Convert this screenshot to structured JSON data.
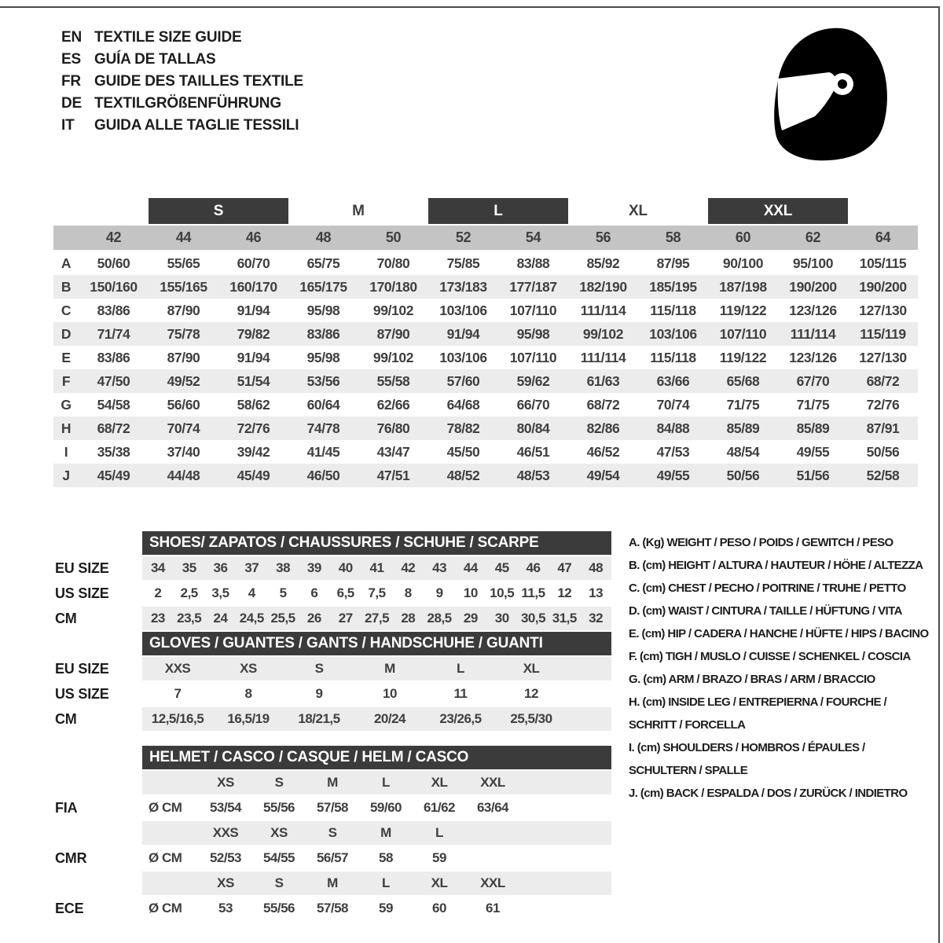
{
  "colors": {
    "dark_bar": "#3b3b3b",
    "header_gray": "#c4c4c4",
    "zebra_gray": "#ececec",
    "text": "#3f3f3f"
  },
  "languages": [
    {
      "code": "EN",
      "label": "TEXTILE SIZE GUIDE"
    },
    {
      "code": "ES",
      "label": "GUÍA DE TALLAS"
    },
    {
      "code": "FR",
      "label": "GUIDE DES TAILLES TEXTILE"
    },
    {
      "code": "DE",
      "label": "TEXTILGRÖßENFÜHRUNG"
    },
    {
      "code": "IT",
      "label": "GUIDA ALLE TAGLIE TESSILI"
    }
  ],
  "helmet_icon": "racing-helmet-icon",
  "main_table": {
    "size_groups": [
      {
        "label": "S",
        "bar": true,
        "start": 1,
        "span": 2
      },
      {
        "label": "M",
        "bar": false,
        "start": 3,
        "span": 2
      },
      {
        "label": "L",
        "bar": true,
        "start": 5,
        "span": 2
      },
      {
        "label": "XL",
        "bar": false,
        "start": 7,
        "span": 2
      },
      {
        "label": "XXL",
        "bar": true,
        "start": 9,
        "span": 2
      }
    ],
    "columns": [
      "42",
      "44",
      "46",
      "48",
      "50",
      "52",
      "54",
      "56",
      "58",
      "60",
      "62",
      "64"
    ],
    "rows": [
      {
        "id": "A",
        "values": [
          "50/60",
          "55/65",
          "60/70",
          "65/75",
          "70/80",
          "75/85",
          "83/88",
          "85/92",
          "87/95",
          "90/100",
          "95/100",
          "105/115"
        ]
      },
      {
        "id": "B",
        "values": [
          "150/160",
          "155/165",
          "160/170",
          "165/175",
          "170/180",
          "173/183",
          "177/187",
          "182/190",
          "185/195",
          "187/198",
          "190/200",
          "190/200"
        ]
      },
      {
        "id": "C",
        "values": [
          "83/86",
          "87/90",
          "91/94",
          "95/98",
          "99/102",
          "103/106",
          "107/110",
          "111/114",
          "115/118",
          "119/122",
          "123/126",
          "127/130"
        ]
      },
      {
        "id": "D",
        "values": [
          "71/74",
          "75/78",
          "79/82",
          "83/86",
          "87/90",
          "91/94",
          "95/98",
          "99/102",
          "103/106",
          "107/110",
          "111/114",
          "115/119"
        ]
      },
      {
        "id": "E",
        "values": [
          "83/86",
          "87/90",
          "91/94",
          "95/98",
          "99/102",
          "103/106",
          "107/110",
          "111/114",
          "115/118",
          "119/122",
          "123/126",
          "127/130"
        ]
      },
      {
        "id": "F",
        "values": [
          "47/50",
          "49/52",
          "51/54",
          "53/56",
          "55/58",
          "57/60",
          "59/62",
          "61/63",
          "63/66",
          "65/68",
          "67/70",
          "68/72"
        ]
      },
      {
        "id": "G",
        "values": [
          "54/58",
          "56/60",
          "58/62",
          "60/64",
          "62/66",
          "64/68",
          "66/70",
          "68/72",
          "70/74",
          "71/75",
          "71/75",
          "72/76"
        ]
      },
      {
        "id": "H",
        "values": [
          "68/72",
          "70/74",
          "72/76",
          "74/78",
          "76/80",
          "78/82",
          "80/84",
          "82/86",
          "84/88",
          "85/89",
          "85/89",
          "87/91"
        ]
      },
      {
        "id": "I",
        "values": [
          "35/38",
          "37/40",
          "39/42",
          "41/45",
          "43/47",
          "45/50",
          "46/51",
          "46/52",
          "47/53",
          "48/54",
          "49/55",
          "50/56"
        ]
      },
      {
        "id": "J",
        "values": [
          "45/49",
          "44/48",
          "45/49",
          "46/50",
          "47/51",
          "48/52",
          "48/53",
          "49/54",
          "49/55",
          "50/56",
          "51/56",
          "52/58"
        ]
      }
    ]
  },
  "shoes_table": {
    "title": "SHOES/ ZAPATOS / CHAUSSURES / SCHUHE / SCARPE",
    "rows": [
      {
        "label": "EU SIZE",
        "values": [
          "34",
          "35",
          "36",
          "37",
          "38",
          "39",
          "40",
          "41",
          "42",
          "43",
          "44",
          "45",
          "46",
          "47",
          "48"
        ]
      },
      {
        "label": "US SIZE",
        "values": [
          "2",
          "2,5",
          "3,5",
          "4",
          "5",
          "6",
          "6,5",
          "7,5",
          "8",
          "9",
          "10",
          "10,5",
          "11,5",
          "12",
          "13"
        ]
      },
      {
        "label": "CM",
        "values": [
          "23",
          "23,5",
          "24",
          "24,5",
          "25,5",
          "26",
          "27",
          "27,5",
          "28",
          "28,5",
          "29",
          "30",
          "30,5",
          "31,5",
          "32"
        ]
      }
    ]
  },
  "gloves_table": {
    "title": "GLOVES / GUANTES / GANTS / HANDSCHUHE / GUANTI",
    "rows": [
      {
        "label": "EU SIZE",
        "values": [
          "XXS",
          "XS",
          "S",
          "M",
          "L",
          "XL"
        ]
      },
      {
        "label": "US SIZE",
        "values": [
          "7",
          "8",
          "9",
          "10",
          "11",
          "12"
        ]
      },
      {
        "label": "CM",
        "values": [
          "12,5/16,5",
          "16,5/19",
          "18/21,5",
          "20/24",
          "23/26,5",
          "25,5/30"
        ]
      }
    ]
  },
  "helmet_table": {
    "title": "HELMET / CASCO / CASQUE / HELM / CASCO",
    "unit": "Ø CM",
    "sections": [
      {
        "label": "FIA",
        "sizes": [
          "XS",
          "S",
          "M",
          "L",
          "XL",
          "XXL"
        ],
        "values": [
          "53/54",
          "55/56",
          "57/58",
          "59/60",
          "61/62",
          "63/64"
        ]
      },
      {
        "label": "CMR",
        "sizes": [
          "XXS",
          "XS",
          "S",
          "M",
          "L"
        ],
        "values": [
          "52/53",
          "54/55",
          "56/57",
          "58",
          "59"
        ]
      },
      {
        "label": "ECE",
        "sizes": [
          "XS",
          "S",
          "M",
          "L",
          "XL",
          "XXL"
        ],
        "values": [
          "53",
          "55/56",
          "57/58",
          "59",
          "60",
          "61"
        ]
      }
    ]
  },
  "legend": {
    "items": [
      {
        "id": "A",
        "lines": [
          "A. (Kg) WEIGHT / PESO / POIDS / GEWITCH / PESO"
        ]
      },
      {
        "id": "B",
        "lines": [
          "B. (cm) HEIGHT / ALTURA / HAUTEUR / HÖHE / ALTEZZA"
        ]
      },
      {
        "id": "C",
        "lines": [
          "C. (cm) CHEST / PECHO / POITRINE / TRUHE / PETTO"
        ]
      },
      {
        "id": "D",
        "lines": [
          "D. (cm) WAIST / CINTURA / TAILLE / HÜFTUNG / VITA"
        ]
      },
      {
        "id": "E",
        "lines": [
          "E. (cm) HIP / CADERA / HANCHE / HÜFTE / HIPS /  BACINO"
        ]
      },
      {
        "id": "F",
        "lines": [
          "F. (cm) TIGH / MUSLO / CUISSE / SCHENKEL / COSCIA"
        ]
      },
      {
        "id": "G",
        "lines": [
          "G. (cm) ARM  / BRAZO / BRAS / ARM / BRACCIO"
        ]
      },
      {
        "id": "H",
        "lines": [
          "H. (cm) INSIDE LEG / ENTREPIERNA / FOURCHE /",
          "SCHRITT / FORCELLA"
        ]
      },
      {
        "id": "I",
        "lines": [
          "I.  (cm) SHOULDERS / HOMBROS / ÉPAULES /",
          "SCHULTERN / SPALLE"
        ]
      },
      {
        "id": "J",
        "lines": [
          "J. (cm) BACK / ESPALDA / DOS / ZURÜCK / INDIETRO"
        ]
      }
    ]
  }
}
